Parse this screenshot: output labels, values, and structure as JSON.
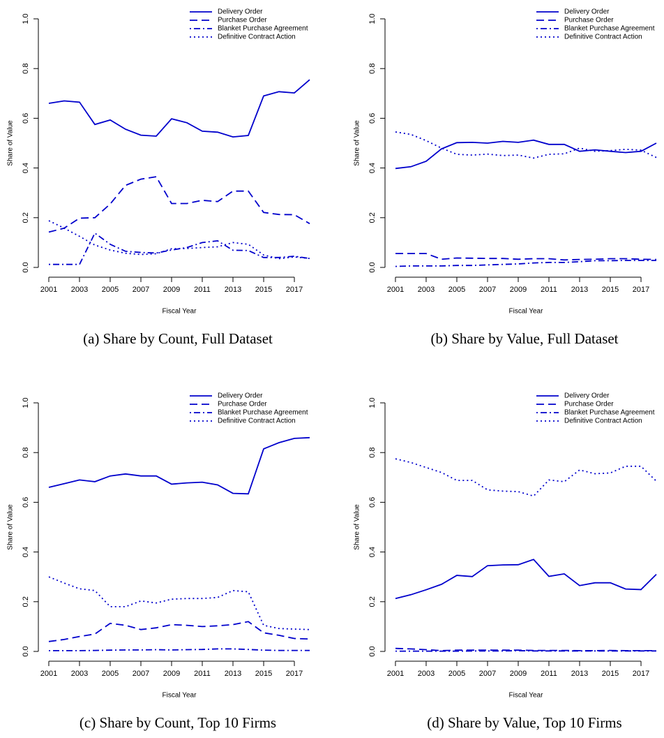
{
  "chart_data": [
    {
      "type": "line",
      "caption": "(a) Share by Count, Full Dataset",
      "xlabel": "Fiscal Year",
      "ylabel": "Share of Value",
      "x": [
        2001,
        2002,
        2003,
        2004,
        2005,
        2006,
        2007,
        2008,
        2009,
        2010,
        2011,
        2012,
        2013,
        2014,
        2015,
        2016,
        2017,
        2018
      ],
      "xlim": [
        2000.32,
        2018.68
      ],
      "xticks": [
        2001,
        2003,
        2005,
        2007,
        2009,
        2011,
        2013,
        2015,
        2017
      ],
      "ylim": [
        0,
        1
      ],
      "yticks": [
        {
          "value": 0,
          "label": "0.0"
        },
        0.2,
        0.4,
        0.6,
        0.8,
        {
          "value": 1,
          "label": "1.0"
        }
      ],
      "legend": "top right",
      "series": [
        {
          "name": "Delivery Order",
          "color": "#0000cc",
          "dash": "solid",
          "values": [
            0.66,
            0.67,
            0.665,
            0.575,
            0.593,
            0.556,
            0.532,
            0.528,
            0.598,
            0.582,
            0.548,
            0.544,
            0.525,
            0.531,
            0.69,
            0.707,
            0.702,
            0.755
          ]
        },
        {
          "name": "Purchase Order",
          "color": "#0000cc",
          "dash": "dashed",
          "values": [
            0.142,
            0.158,
            0.198,
            0.2,
            0.255,
            0.33,
            0.355,
            0.365,
            0.257,
            0.257,
            0.27,
            0.265,
            0.307,
            0.307,
            0.221,
            0.213,
            0.212,
            0.176
          ]
        },
        {
          "name": "Blanket Purchase Agreement",
          "color": "#0000cc",
          "dash": "dotdash",
          "values": [
            0.012,
            0.012,
            0.012,
            0.138,
            0.093,
            0.065,
            0.06,
            0.058,
            0.07,
            0.08,
            0.1,
            0.107,
            0.069,
            0.068,
            0.04,
            0.04,
            0.045,
            0.036
          ]
        },
        {
          "name": "Definitive Contract Action",
          "color": "#0000cc",
          "dash": "dotted",
          "values": [
            0.188,
            0.158,
            0.125,
            0.09,
            0.07,
            0.057,
            0.052,
            0.055,
            0.075,
            0.076,
            0.08,
            0.083,
            0.1,
            0.093,
            0.05,
            0.035,
            0.042,
            0.036
          ]
        }
      ]
    },
    {
      "type": "line",
      "caption": "(b) Share by Value, Full Dataset",
      "xlabel": "Fiscal Year",
      "ylabel": "Share of Value",
      "x": [
        2001,
        2002,
        2003,
        2004,
        2005,
        2006,
        2007,
        2008,
        2009,
        2010,
        2011,
        2012,
        2013,
        2014,
        2015,
        2016,
        2017,
        2018
      ],
      "xlim": [
        2000.32,
        2018.68
      ],
      "xticks": [
        2001,
        2003,
        2005,
        2007,
        2009,
        2011,
        2013,
        2015,
        2017
      ],
      "ylim": [
        0,
        1
      ],
      "yticks": [
        {
          "value": 0,
          "label": "0.0"
        },
        0.2,
        0.4,
        0.6,
        0.8,
        {
          "value": 1,
          "label": "1.0"
        }
      ],
      "legend": "top right",
      "series": [
        {
          "name": "Delivery Order",
          "color": "#0000cc",
          "dash": "solid",
          "values": [
            0.398,
            0.405,
            0.427,
            0.477,
            0.502,
            0.503,
            0.5,
            0.507,
            0.503,
            0.512,
            0.495,
            0.495,
            0.467,
            0.473,
            0.467,
            0.462,
            0.467,
            0.5
          ]
        },
        {
          "name": "Purchase Order",
          "color": "#0000cc",
          "dash": "dashed",
          "values": [
            0.056,
            0.056,
            0.056,
            0.033,
            0.038,
            0.037,
            0.036,
            0.036,
            0.033,
            0.035,
            0.035,
            0.03,
            0.032,
            0.033,
            0.035,
            0.035,
            0.033,
            0.032
          ]
        },
        {
          "name": "Blanket Purchase Agreement",
          "color": "#0000cc",
          "dash": "dotdash",
          "values": [
            0.004,
            0.006,
            0.006,
            0.006,
            0.008,
            0.008,
            0.01,
            0.012,
            0.014,
            0.018,
            0.02,
            0.02,
            0.023,
            0.027,
            0.027,
            0.028,
            0.028,
            0.028
          ]
        },
        {
          "name": "Definitive Contract Action",
          "color": "#0000cc",
          "dash": "dotted",
          "values": [
            0.545,
            0.535,
            0.51,
            0.48,
            0.455,
            0.452,
            0.456,
            0.45,
            0.452,
            0.44,
            0.455,
            0.457,
            0.48,
            0.467,
            0.47,
            0.475,
            0.472,
            0.442
          ]
        }
      ]
    },
    {
      "type": "line",
      "caption": "(c) Share by Count, Top 10 Firms",
      "xlabel": "Fiscal Year",
      "ylabel": "Share of Value",
      "x": [
        2001,
        2002,
        2003,
        2004,
        2005,
        2006,
        2007,
        2008,
        2009,
        2010,
        2011,
        2012,
        2013,
        2014,
        2015,
        2016,
        2017,
        2018
      ],
      "xlim": [
        2000.32,
        2018.68
      ],
      "xticks": [
        2001,
        2003,
        2005,
        2007,
        2009,
        2011,
        2013,
        2015,
        2017
      ],
      "ylim": [
        0,
        1
      ],
      "yticks": [
        {
          "value": 0,
          "label": "0.0"
        },
        0.2,
        0.4,
        0.6,
        0.8,
        {
          "value": 1,
          "label": "1.0"
        }
      ],
      "legend": "top right",
      "series": [
        {
          "name": "Delivery Order",
          "color": "#0000cc",
          "dash": "solid",
          "values": [
            0.66,
            0.675,
            0.69,
            0.683,
            0.706,
            0.714,
            0.706,
            0.706,
            0.673,
            0.678,
            0.681,
            0.67,
            0.636,
            0.634,
            0.815,
            0.84,
            0.857,
            0.86
          ]
        },
        {
          "name": "Purchase Order",
          "color": "#0000cc",
          "dash": "dashed",
          "values": [
            0.04,
            0.048,
            0.06,
            0.07,
            0.113,
            0.105,
            0.088,
            0.095,
            0.108,
            0.105,
            0.1,
            0.103,
            0.108,
            0.12,
            0.075,
            0.065,
            0.052,
            0.05
          ]
        },
        {
          "name": "Blanket Purchase Agreement",
          "color": "#0000cc",
          "dash": "dotdash",
          "values": [
            0.003,
            0.003,
            0.003,
            0.004,
            0.005,
            0.006,
            0.006,
            0.007,
            0.006,
            0.007,
            0.008,
            0.01,
            0.01,
            0.008,
            0.005,
            0.004,
            0.004,
            0.004
          ]
        },
        {
          "name": "Definitive Contract Action",
          "color": "#0000cc",
          "dash": "dotted",
          "values": [
            0.3,
            0.275,
            0.252,
            0.245,
            0.18,
            0.18,
            0.203,
            0.195,
            0.21,
            0.213,
            0.213,
            0.217,
            0.245,
            0.24,
            0.105,
            0.092,
            0.09,
            0.088
          ]
        }
      ]
    },
    {
      "type": "line",
      "caption": "(d) Share by Value, Top 10 Firms",
      "xlabel": "Fiscal Year",
      "ylabel": "Share of Value",
      "x": [
        2001,
        2002,
        2003,
        2004,
        2005,
        2006,
        2007,
        2008,
        2009,
        2010,
        2011,
        2012,
        2013,
        2014,
        2015,
        2016,
        2017,
        2018
      ],
      "xlim": [
        2000.32,
        2018.68
      ],
      "xticks": [
        2001,
        2003,
        2005,
        2007,
        2009,
        2011,
        2013,
        2015,
        2017
      ],
      "ylim": [
        0,
        1
      ],
      "yticks": [
        {
          "value": 0,
          "label": "0.0"
        },
        0.2,
        0.4,
        0.6,
        0.8,
        {
          "value": 1,
          "label": "1.0"
        }
      ],
      "legend": "top right",
      "series": [
        {
          "name": "Delivery Order",
          "color": "#0000cc",
          "dash": "solid",
          "values": [
            0.213,
            0.228,
            0.248,
            0.27,
            0.306,
            0.301,
            0.345,
            0.348,
            0.349,
            0.37,
            0.302,
            0.312,
            0.265,
            0.276,
            0.276,
            0.251,
            0.249,
            0.31
          ]
        },
        {
          "name": "Purchase Order",
          "color": "#0000cc",
          "dash": "dashed",
          "values": [
            0.012,
            0.01,
            0.007,
            0.003,
            0.005,
            0.005,
            0.005,
            0.005,
            0.005,
            0.004,
            0.004,
            0.004,
            0.003,
            0.003,
            0.004,
            0.003,
            0.003,
            0.003
          ]
        },
        {
          "name": "Blanket Purchase Agreement",
          "color": "#0000cc",
          "dash": "dotdash",
          "values": [
            0.001,
            0.001,
            0.001,
            0.001,
            0.001,
            0.002,
            0.002,
            0.002,
            0.003,
            0.002,
            0.002,
            0.002,
            0.002,
            0.002,
            0.002,
            0.002,
            0.002,
            0.002
          ]
        },
        {
          "name": "Definitive Contract Action",
          "color": "#0000cc",
          "dash": "dotted",
          "values": [
            0.775,
            0.76,
            0.74,
            0.72,
            0.688,
            0.688,
            0.65,
            0.645,
            0.643,
            0.625,
            0.69,
            0.683,
            0.73,
            0.715,
            0.718,
            0.745,
            0.745,
            0.685
          ]
        }
      ]
    }
  ]
}
